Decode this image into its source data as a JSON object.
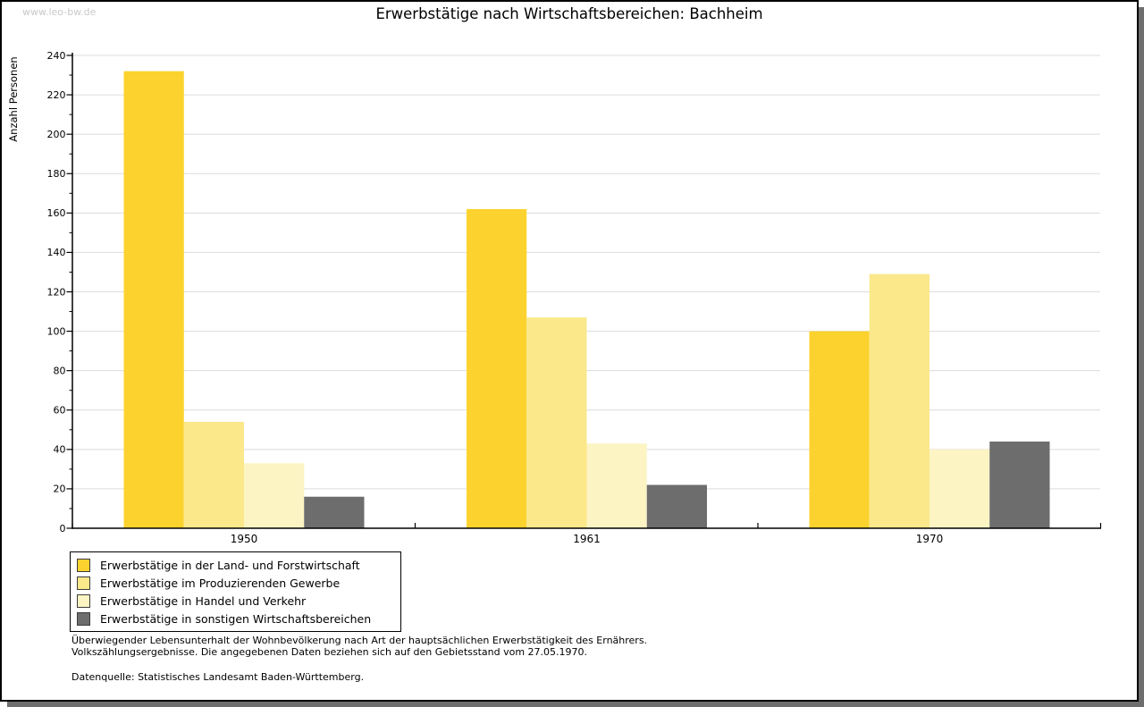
{
  "window": {
    "watermark": "www.leo-bw.de",
    "title": "Erwerbstätige nach Wirtschaftsbereichen: Bachheim"
  },
  "chart_data": {
    "type": "bar",
    "title": "Erwerbstätige nach Wirtschaftsbereichen: Bachheim",
    "xlabel": "",
    "ylabel": "Anzahl Personen",
    "ylim": [
      0,
      240
    ],
    "ytick_step": 20,
    "ytick_minor_step": 10,
    "grid": true,
    "legend_position": "below-left",
    "categories": [
      "1950",
      "1961",
      "1970"
    ],
    "series": [
      {
        "name": "Erwerbstätige in der Land- und Forstwirtschaft",
        "color": "#fcd32e",
        "values": [
          232,
          162,
          100
        ]
      },
      {
        "name": "Erwerbstätige im Produzierenden Gewerbe",
        "color": "#fae88b",
        "values": [
          54,
          107,
          129
        ]
      },
      {
        "name": "Erwerbstätige in Handel und Verkehr",
        "color": "#fcf4c3",
        "values": [
          33,
          43,
          40
        ]
      },
      {
        "name": "Erwerbstätige in sonstigen Wirtschaftsbereichen",
        "color": "#6d6d6d",
        "values": [
          16,
          22,
          44
        ]
      }
    ]
  },
  "footnotes": {
    "line1": "Überwiegender Lebensunterhalt der Wohnbevölkerung nach Art der hauptsächlichen Erwerbstätigkeit des Ernährers.",
    "line2": "Volkszählungsergebnisse. Die angegebenen Daten beziehen sich auf den Gebietsstand vom 27.05.1970.",
    "source": "Datenquelle: Statistisches Landesamt Baden-Württemberg."
  },
  "colors": {
    "grid": "#dcdcdc",
    "axis": "#000000",
    "watermark": "#c9c9c9",
    "shadow": "#6e6e6e"
  }
}
